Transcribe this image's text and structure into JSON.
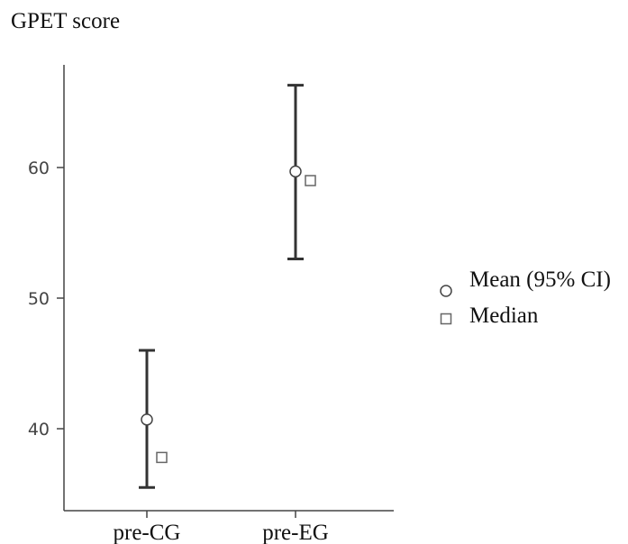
{
  "chart_data": {
    "type": "errorbar",
    "title": "GPET score",
    "xlabel": "",
    "ylabel": "",
    "categories": [
      "pre-CG",
      "pre-EG"
    ],
    "series": [
      {
        "name": "Mean (95% CI)",
        "marker": "circle",
        "values": [
          40.7,
          59.7
        ],
        "ci_lower": [
          35.5,
          53.0
        ],
        "ci_upper": [
          46.0,
          66.3
        ]
      },
      {
        "name": "Median",
        "marker": "square",
        "values": [
          37.8,
          59.0
        ]
      }
    ],
    "yticks": [
      40,
      50,
      60
    ],
    "ylim": [
      34,
      71
    ],
    "grid": false,
    "legend_position": "right"
  },
  "colors": {
    "axis": "#444444",
    "errorbar": "#333333",
    "marker_stroke": "#444444",
    "median_stroke": "#666666",
    "marker_fill": "#ffffff"
  }
}
